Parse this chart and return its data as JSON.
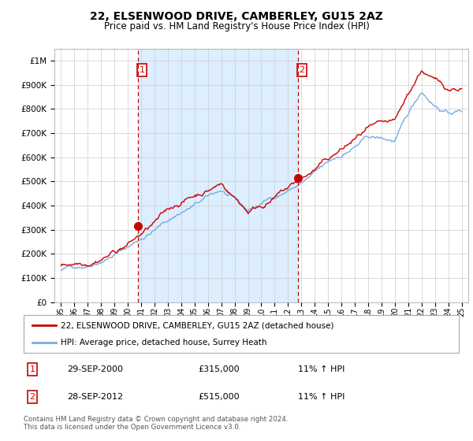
{
  "title": "22, ELSENWOOD DRIVE, CAMBERLEY, GU15 2AZ",
  "subtitle": "Price paid vs. HM Land Registry's House Price Index (HPI)",
  "legend_line1": "22, ELSENWOOD DRIVE, CAMBERLEY, GU15 2AZ (detached house)",
  "legend_line2": "HPI: Average price, detached house, Surrey Heath",
  "annotation1_label": "1",
  "annotation1_date": "29-SEP-2000",
  "annotation1_price": "£315,000",
  "annotation1_hpi": "11% ↑ HPI",
  "annotation2_label": "2",
  "annotation2_date": "28-SEP-2012",
  "annotation2_price": "£515,000",
  "annotation2_hpi": "11% ↑ HPI",
  "footer": "Contains HM Land Registry data © Crown copyright and database right 2024.\nThis data is licensed under the Open Government Licence v3.0.",
  "sale1_year": 2000.75,
  "sale1_value": 315000,
  "sale2_year": 2012.75,
  "sale2_value": 515000,
  "hpi_color": "#7aabe0",
  "price_color": "#cc0000",
  "vline_color": "#cc0000",
  "shade_color": "#ddeeff",
  "ylim_max": 1050000,
  "ylim_min": 0,
  "xstart": 1994.5,
  "xend": 2025.5
}
